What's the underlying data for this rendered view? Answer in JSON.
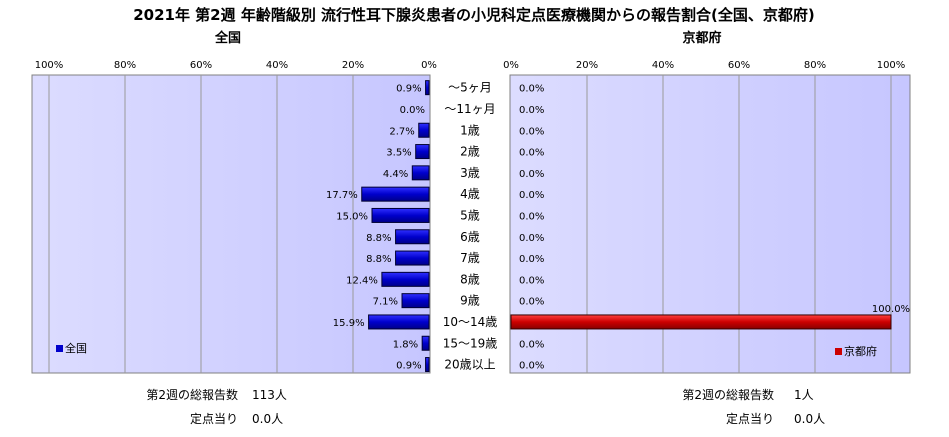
{
  "title": "2021年 第2週 年齢階級別 流行性耳下腺炎患者の小児科定点医療機関からの報告割合(全国、京都府)",
  "chart_data": [
    {
      "type": "bar",
      "orientation": "horizontal",
      "direction": "right-to-left",
      "subtitle": "全国",
      "categories": [
        "～5ヶ月",
        "～11ヶ月",
        "1歳",
        "2歳",
        "3歳",
        "4歳",
        "5歳",
        "6歳",
        "7歳",
        "8歳",
        "9歳",
        "10～14歳",
        "15～19歳",
        "20歳以上"
      ],
      "series": [
        {
          "name": "全国",
          "color": "#0000cc",
          "values": [
            0.9,
            0.0,
            2.7,
            3.5,
            4.4,
            17.7,
            15.0,
            8.8,
            8.8,
            12.4,
            7.1,
            15.9,
            1.8,
            0.9
          ],
          "labels": [
            "0.9%",
            "0.0%",
            "2.7%",
            "3.5%",
            "4.4%",
            "17.7%",
            "15.0%",
            "8.8%",
            "8.8%",
            "12.4%",
            "7.1%",
            "15.9%",
            "1.8%",
            "0.9%"
          ]
        }
      ],
      "xlim": [
        0,
        100
      ],
      "ticks": [
        "100%",
        "80%",
        "60%",
        "40%",
        "20%",
        "0%"
      ],
      "legend_position": "bottom-left",
      "plot_bg": "#ccccff"
    },
    {
      "type": "bar",
      "orientation": "horizontal",
      "direction": "left-to-right",
      "subtitle": "京都府",
      "categories": [
        "～5ヶ月",
        "～11ヶ月",
        "1歳",
        "2歳",
        "3歳",
        "4歳",
        "5歳",
        "6歳",
        "7歳",
        "8歳",
        "9歳",
        "10～14歳",
        "15～19歳",
        "20歳以上"
      ],
      "series": [
        {
          "name": "京都府",
          "color": "#cc0000",
          "values": [
            0,
            0,
            0,
            0,
            0,
            0,
            0,
            0,
            0,
            0,
            0,
            100.0,
            0,
            0
          ],
          "labels": [
            "0.0%",
            "0.0%",
            "0.0%",
            "0.0%",
            "0.0%",
            "0.0%",
            "0.0%",
            "0.0%",
            "0.0%",
            "0.0%",
            "0.0%",
            "100.0%",
            "0.0%",
            "0.0%"
          ]
        }
      ],
      "xlim": [
        0,
        100
      ],
      "ticks": [
        "0%",
        "20%",
        "40%",
        "60%",
        "80%",
        "100%"
      ],
      "legend_position": "bottom-right",
      "plot_bg": "#ccccff"
    }
  ],
  "stats": {
    "left": {
      "total_label": "第2週の総報告数",
      "total_value": "113人",
      "per_label": "定点当り",
      "per_value": "0.0人"
    },
    "right": {
      "total_label": "第2週の総報告数",
      "total_value": "1人",
      "per_label": "定点当り",
      "per_value": "0.0人"
    }
  }
}
